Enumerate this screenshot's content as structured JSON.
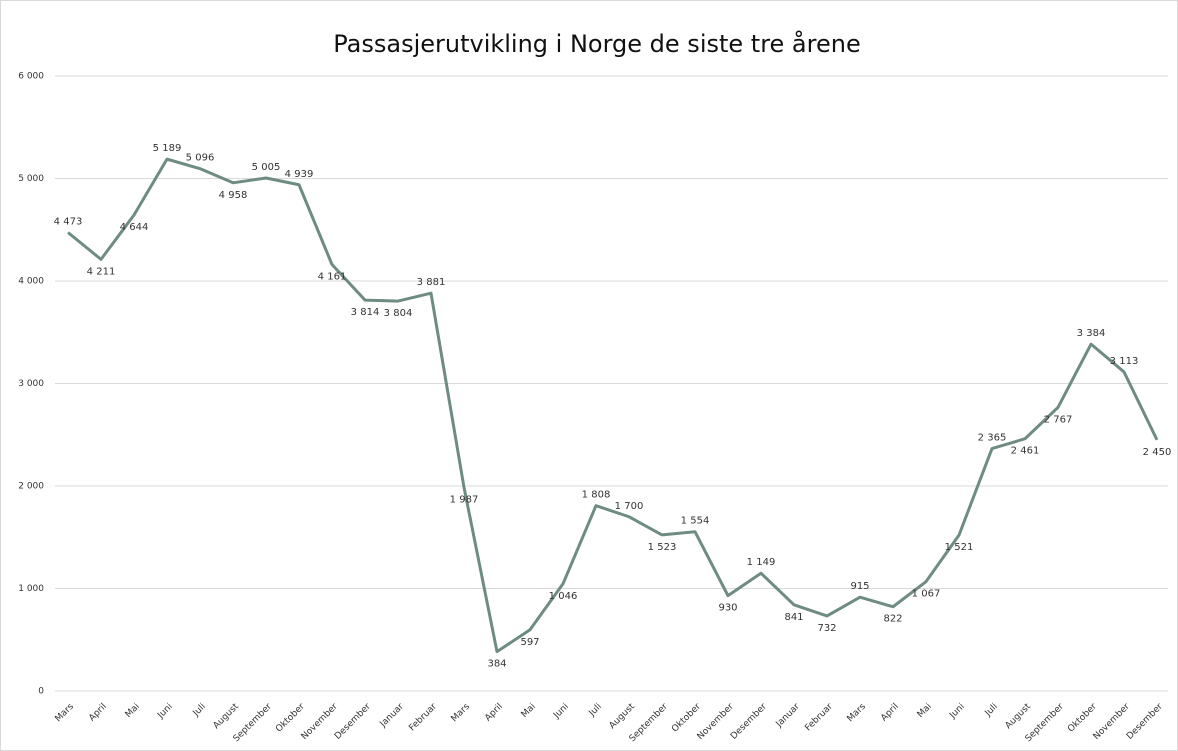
{
  "chart_data": {
    "type": "line",
    "title": "Passasjerutvikling i Norge de siste tre årene",
    "categories": [
      "Mars",
      "April",
      "Mai",
      "Juni",
      "Juli",
      "August",
      "September",
      "Oktober",
      "November",
      "Desember",
      "Januar",
      "Februar",
      "Mars",
      "April",
      "Mai",
      "Juni",
      "Juli",
      "August",
      "September",
      "Oktober",
      "November",
      "Desember",
      "Januar",
      "Februar",
      "Mars",
      "April",
      "Mai",
      "Juni",
      "Juli",
      "August",
      "September",
      "Oktober",
      "November",
      "Desember"
    ],
    "series": [
      {
        "color": "#6f8c80",
        "values": [
          4473,
          4211,
          4644,
          5189,
          5096,
          4958,
          5005,
          4939,
          4161,
          3814,
          3804,
          3881,
          1987,
          384,
          597,
          1046,
          1808,
          1700,
          1523,
          1554,
          930,
          1149,
          841,
          732,
          915,
          822,
          1067,
          1521,
          2365,
          2461,
          2767,
          3384,
          3113,
          2450
        ],
        "value_labels": [
          "4 473",
          "4 211",
          "4 644",
          "5 189",
          "5 096",
          "4 958",
          "5 005",
          "4 939",
          "4 161",
          "3 814",
          "3 804",
          "3 881",
          "1 987",
          "384",
          "597",
          "1 046",
          "1 808",
          "1 700",
          "1 523",
          "1 554",
          "930",
          "1 149",
          "841",
          "732",
          "915",
          "822",
          "1 067",
          "1 521",
          "2 365",
          "2 461",
          "2 767",
          "3 384",
          "3 113",
          "2 450"
        ]
      }
    ],
    "ylim": [
      0,
      6000
    ],
    "yticks": [
      0,
      {
        "value": 1000,
        "label": "1 000"
      },
      {
        "value": 2000,
        "label": "2 000"
      },
      {
        "value": 3000,
        "label": "3 000"
      },
      {
        "value": 4000,
        "label": "4 000"
      },
      {
        "value": 5000,
        "label": "5 000"
      },
      {
        "value": 6000,
        "label": "6 000"
      }
    ],
    "grid": true
  }
}
